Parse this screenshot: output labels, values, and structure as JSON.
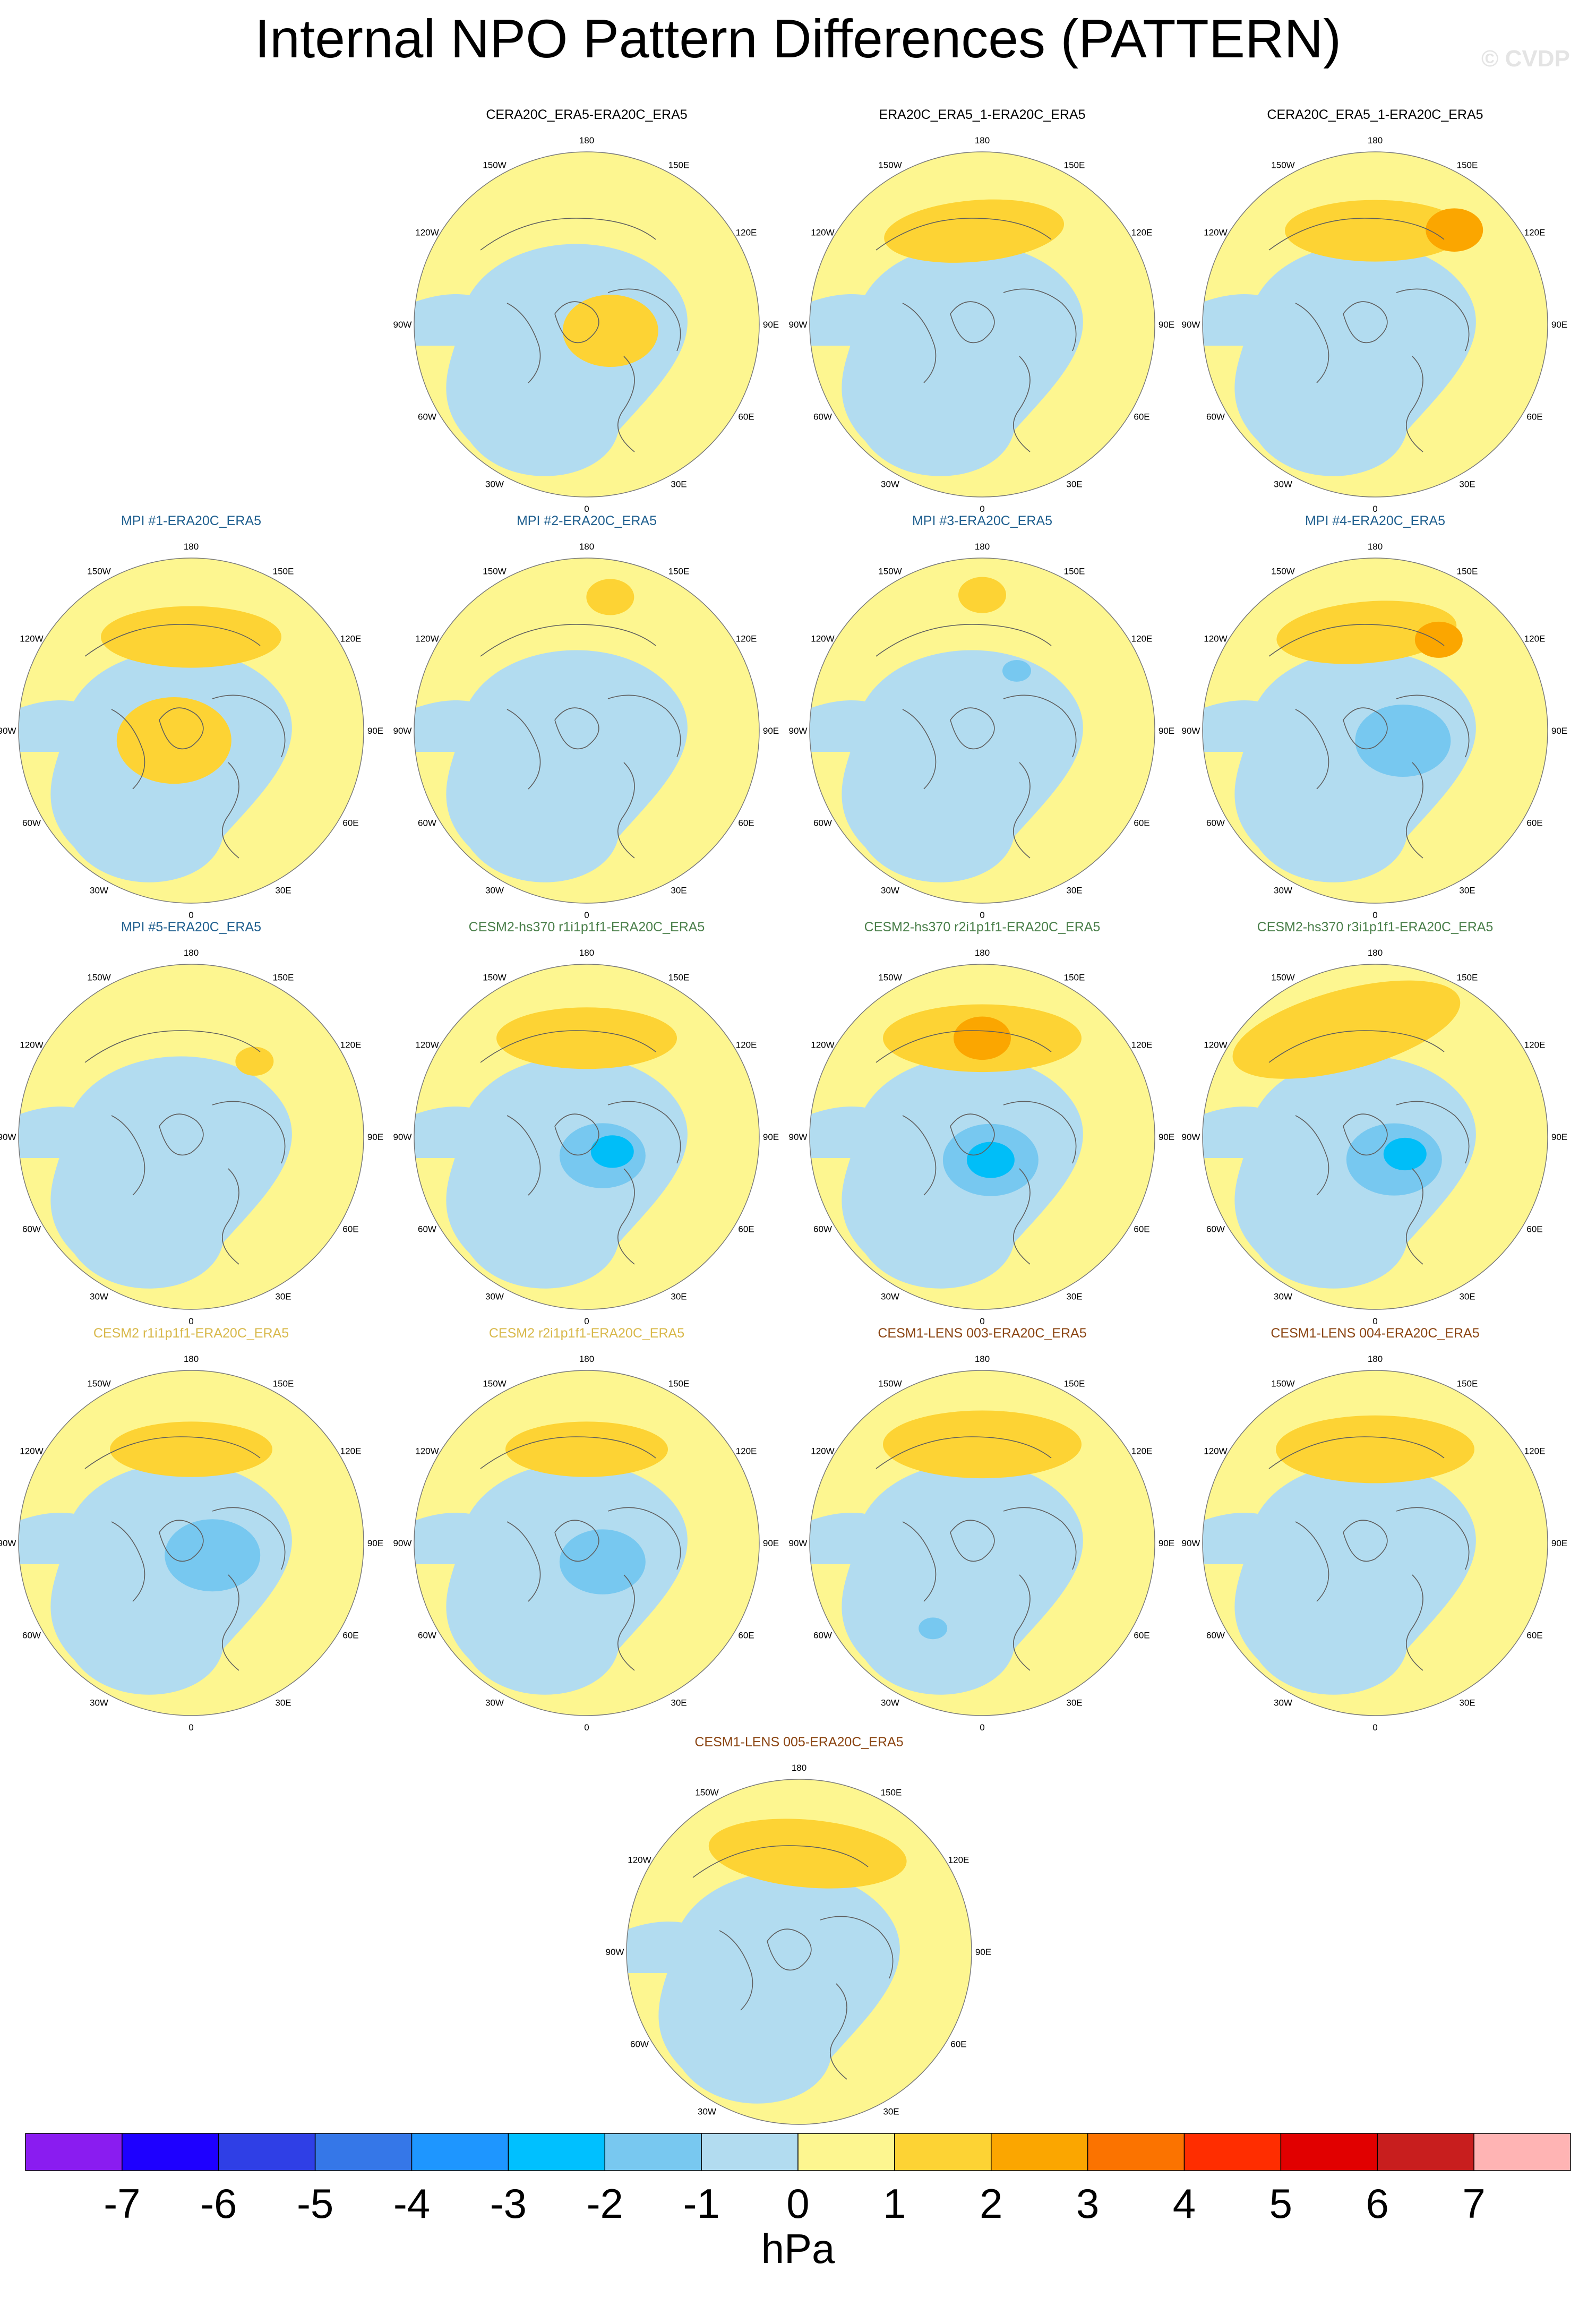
{
  "title": "Internal NPO Pattern Differences (PATTERN)",
  "watermark": "© CVDP",
  "map_labels": {
    "top": "180",
    "bottom": "0",
    "upper_left": "150W",
    "upper_right": "150E",
    "left_upper": "120W",
    "right_upper": "120E",
    "left": "90W",
    "right": "90E",
    "left_lower": "60W",
    "right_lower": "60E",
    "lower_left": "30W",
    "lower_right": "30E"
  },
  "colors": {
    "ocean_low": "#b2dcf0",
    "land_low": "#fdf690",
    "orange_1": "#fdd334",
    "orange_2": "#fba600",
    "blue_1": "#77c8f0",
    "blue_2": "#00bef8",
    "coast": "#5f5f5f"
  },
  "panels": [
    {
      "title": "CERA20C_ERA5-ERA20C_ERA5",
      "title_color": "#000000",
      "features": [
        {
          "level": 1,
          "shape": "blob",
          "lon": 75,
          "colat": 10,
          "size": 1
        }
      ]
    },
    {
      "title": "ERA20C_ERA5_1-ERA20C_ERA5",
      "title_color": "#000000",
      "features": [
        {
          "level": 1,
          "shape": "arc",
          "lon": 185,
          "colat": 38,
          "size": 1
        }
      ]
    },
    {
      "title": "CERA20C_ERA5_1-ERA20C_ERA5",
      "title_color": "#000000",
      "features": [
        {
          "level": 1,
          "shape": "arc",
          "lon": 180,
          "colat": 38,
          "size": 1
        },
        {
          "level": 2,
          "shape": "blob",
          "lon": 140,
          "colat": 50,
          "size": 0.6
        }
      ]
    },
    {
      "title": "MPI #1-ERA20C_ERA5",
      "title_color": "#1f5f8f",
      "features": [
        {
          "level": 1,
          "shape": "arc",
          "lon": 180,
          "colat": 38,
          "size": 1
        },
        {
          "level": 1,
          "shape": "blob",
          "lon": 300,
          "colat": 8,
          "size": 1.2
        }
      ]
    },
    {
      "title": "MPI #2-ERA20C_ERA5",
      "title_color": "#1f5f8f",
      "features": [
        {
          "level": 1,
          "shape": "blob",
          "lon": 170,
          "colat": 55,
          "size": 0.5
        }
      ]
    },
    {
      "title": "MPI #3-ERA20C_ERA5",
      "title_color": "#1f5f8f",
      "features": [
        {
          "level": 1,
          "shape": "blob",
          "lon": 180,
          "colat": 55,
          "size": 0.5
        },
        {
          "level": -2,
          "shape": "blob",
          "lon": 150,
          "colat": 28,
          "size": 0.3
        }
      ]
    },
    {
      "title": "MPI #4-ERA20C_ERA5",
      "title_color": "#1f5f8f",
      "features": [
        {
          "level": 1,
          "shape": "arc",
          "lon": 185,
          "colat": 40,
          "size": 1
        },
        {
          "level": 2,
          "shape": "blob",
          "lon": 145,
          "colat": 45,
          "size": 0.5
        },
        {
          "level": -2,
          "shape": "blob",
          "lon": 70,
          "colat": 12,
          "size": 1
        }
      ]
    },
    {
      "title": "MPI #5-ERA20C_ERA5",
      "title_color": "#1f5f8f",
      "features": [
        {
          "level": 1,
          "shape": "blob",
          "lon": 140,
          "colat": 40,
          "size": 0.4
        }
      ]
    },
    {
      "title": "CESM2-hs370 r1i1p1f1-ERA20C_ERA5",
      "title_color": "#4a7f4a",
      "features": [
        {
          "level": 1,
          "shape": "arc",
          "lon": 180,
          "colat": 40,
          "size": 1
        },
        {
          "level": -2,
          "shape": "blob",
          "lon": 40,
          "colat": 10,
          "size": 0.9
        },
        {
          "level": -3,
          "shape": "blob",
          "lon": 60,
          "colat": 12,
          "size": 0.45
        }
      ]
    },
    {
      "title": "CESM2-hs370 r2i1p1f1-ERA20C_ERA5",
      "title_color": "#4a7f4a",
      "features": [
        {
          "level": 1,
          "shape": "arc",
          "lon": 180,
          "colat": 40,
          "size": 1.1
        },
        {
          "level": 2,
          "shape": "blob",
          "lon": 180,
          "colat": 40,
          "size": 0.6
        },
        {
          "level": -2,
          "shape": "blob",
          "lon": 20,
          "colat": 10,
          "size": 1
        },
        {
          "level": -3,
          "shape": "blob",
          "lon": 20,
          "colat": 10,
          "size": 0.5
        }
      ]
    },
    {
      "title": "CESM2-hs370 r3i1p1f1-ERA20C_ERA5",
      "title_color": "#4a7f4a",
      "features": [
        {
          "level": 1,
          "shape": "arc",
          "lon": 195,
          "colat": 45,
          "size": 1.3
        },
        {
          "level": -2,
          "shape": "blob",
          "lon": 40,
          "colat": 12,
          "size": 1
        },
        {
          "level": -3,
          "shape": "blob",
          "lon": 60,
          "colat": 14,
          "size": 0.45
        }
      ]
    },
    {
      "title": "CESM2 r1i1p1f1-ERA20C_ERA5",
      "title_color": "#d8b84a",
      "features": [
        {
          "level": 1,
          "shape": "arc",
          "lon": 180,
          "colat": 38,
          "size": 0.9
        },
        {
          "level": -2,
          "shape": "blob",
          "lon": 60,
          "colat": 10,
          "size": 1
        }
      ]
    },
    {
      "title": "CESM2 r2i1p1f1-ERA20C_ERA5",
      "title_color": "#d8b84a",
      "features": [
        {
          "level": 1,
          "shape": "arc",
          "lon": 180,
          "colat": 38,
          "size": 0.9
        },
        {
          "level": -2,
          "shape": "blob",
          "lon": 40,
          "colat": 10,
          "size": 0.9
        }
      ]
    },
    {
      "title": "CESM1-LENS 003-ERA20C_ERA5",
      "title_color": "#8b4513",
      "features": [
        {
          "level": 1,
          "shape": "arc",
          "lon": 180,
          "colat": 40,
          "size": 1.1
        },
        {
          "level": -2,
          "shape": "blob",
          "lon": 330,
          "colat": 40,
          "size": 0.3
        }
      ]
    },
    {
      "title": "CESM1-LENS 004-ERA20C_ERA5",
      "title_color": "#8b4513",
      "features": [
        {
          "level": 1,
          "shape": "arc",
          "lon": 180,
          "colat": 38,
          "size": 1.1
        }
      ]
    },
    {
      "title": "CESM1-LENS 005-ERA20C_ERA5",
      "title_color": "#8b4513",
      "features": [
        {
          "level": 1,
          "shape": "arc",
          "lon": 175,
          "colat": 40,
          "size": 1.1
        }
      ]
    }
  ],
  "colorbar": {
    "colors": [
      "#8a1cf0",
      "#1e00ff",
      "#2f3fe6",
      "#3577e8",
      "#1e96ff",
      "#00c0ff",
      "#78c8f0",
      "#b2dcf0",
      "#fdf690",
      "#fdd334",
      "#fba600",
      "#fb7300",
      "#ff2d00",
      "#e10000",
      "#c81e1e",
      "#ffb4b4"
    ],
    "labels": [
      "-7",
      "-6",
      "-5",
      "-4",
      "-3",
      "-2",
      "-1",
      "0",
      "1",
      "2",
      "3",
      "4",
      "5",
      "6",
      "7"
    ]
  },
  "units": "hPa"
}
